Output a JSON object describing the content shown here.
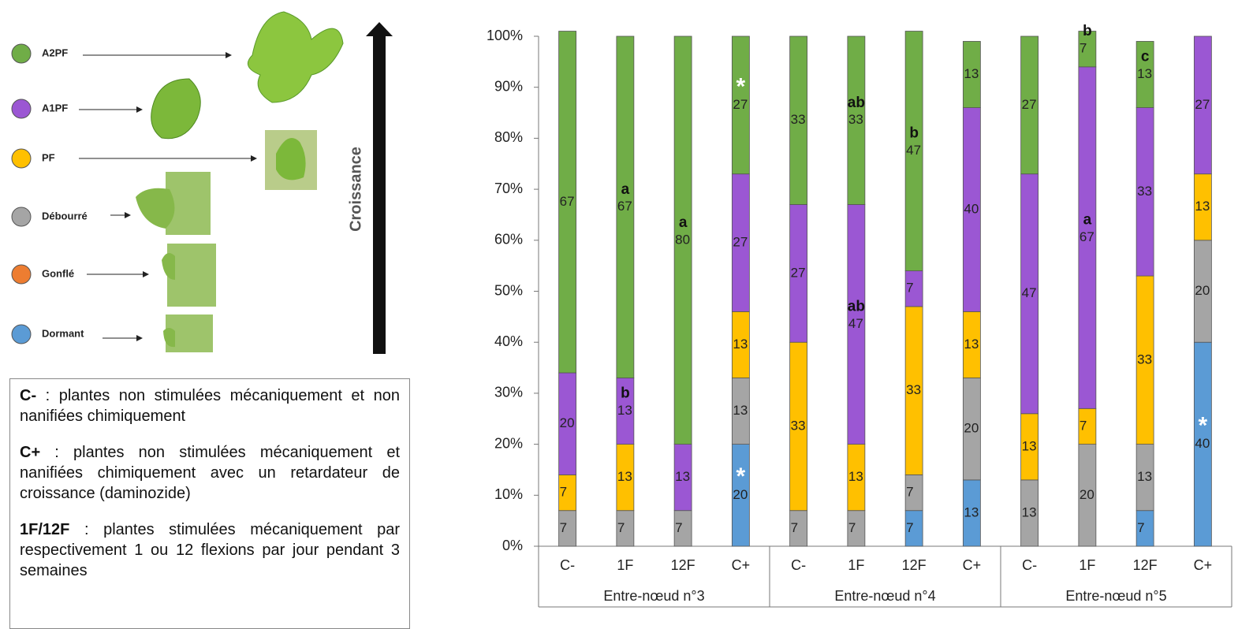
{
  "chart_data": {
    "type": "stacked-bar",
    "categories": [
      "C-",
      "1F",
      "12F",
      "C+",
      "C-",
      "1F",
      "12F",
      "C+",
      "C-",
      "1F",
      "12F",
      "C+"
    ],
    "groups": [
      "Entre-nœud n°3",
      "Entre-nœud n°4",
      "Entre-nœud n°5"
    ],
    "series": [
      {
        "name": "Dormant",
        "color": "#5b9bd5",
        "values": [
          null,
          null,
          null,
          20,
          null,
          null,
          7,
          13,
          null,
          null,
          7,
          40
        ],
        "annotations": [
          null,
          null,
          null,
          "*",
          null,
          null,
          null,
          null,
          null,
          null,
          null,
          "*"
        ]
      },
      {
        "name": "Gonflé",
        "color": "#ed7d31",
        "values": [
          null,
          null,
          null,
          null,
          null,
          null,
          null,
          null,
          null,
          null,
          null,
          null
        ]
      },
      {
        "name": "Débourré",
        "color": "#a5a5a5",
        "values": [
          7,
          7,
          7,
          13,
          7,
          7,
          7,
          20,
          13,
          20,
          13,
          20
        ]
      },
      {
        "name": "PF",
        "color": "#ffc000",
        "values": [
          7,
          13,
          null,
          13,
          33,
          13,
          33,
          13,
          13,
          7,
          33,
          13
        ]
      },
      {
        "name": "A1PF",
        "color": "#9b57d3",
        "values": [
          20,
          13,
          13,
          27,
          27,
          47,
          7,
          40,
          47,
          67,
          33,
          27
        ],
        "annotations": [
          null,
          "b",
          null,
          null,
          null,
          "ab",
          null,
          null,
          null,
          "a",
          null,
          null
        ]
      },
      {
        "name": "A2PF",
        "color": "#70ad47",
        "values": [
          67,
          67,
          80,
          27,
          33,
          33,
          47,
          13,
          27,
          7,
          13,
          null
        ],
        "annotations": [
          null,
          "a",
          "a",
          "*",
          null,
          "ab",
          "b",
          null,
          null,
          "b",
          "c",
          null
        ]
      }
    ],
    "ylim": [
      0,
      100
    ],
    "yticks": [
      {
        "value": 0,
        "label": "0%"
      },
      {
        "value": 10,
        "label": "10%"
      },
      {
        "value": 20,
        "label": "20%"
      },
      {
        "value": 30,
        "label": "30%"
      },
      {
        "value": 40,
        "label": "40%"
      },
      {
        "value": 50,
        "label": "50%"
      },
      {
        "value": 60,
        "label": "60%"
      },
      {
        "value": 70,
        "label": "70%"
      },
      {
        "value": 80,
        "label": "80%"
      },
      {
        "value": 90,
        "label": "90%"
      },
      {
        "value": 100,
        "label": "100%"
      }
    ]
  },
  "arrow_label": "Croissance",
  "notes": [
    {
      "term": "C-",
      "text": " : plantes non stimulées mécaniquement et non nanifiées chimiquement"
    },
    {
      "term": "C+",
      "text": " : plantes non stimulées mécaniquement et nanifiées chimiquement avec un retardateur de croissance (daminozide)"
    },
    {
      "term": "1F/12F",
      "text": " : plantes stimulées mécaniquement par respectivement 1 ou 12 flexions par jour pendant 3 semaines"
    }
  ]
}
